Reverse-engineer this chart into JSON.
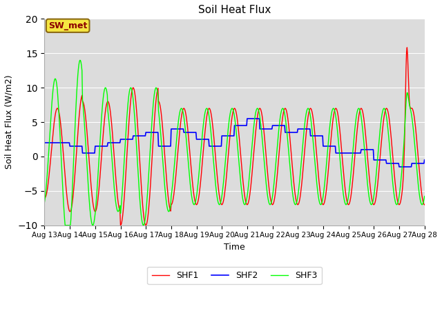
{
  "title": "Soil Heat Flux",
  "ylabel": "Soil Heat Flux (W/m2)",
  "xlabel": "Time",
  "ylim": [
    -10,
    20
  ],
  "annotation_text": "SW_met",
  "legend_labels": [
    "SHF1",
    "SHF2",
    "SHF3"
  ],
  "line_colors": [
    "red",
    "blue",
    "lime"
  ],
  "background_color": "#dcdcdc",
  "yticks": [
    -10,
    -5,
    0,
    5,
    10,
    15,
    20
  ],
  "xtick_labels": [
    "Aug 13",
    "Aug 14",
    "Aug 15",
    "Aug 16",
    "Aug 17",
    "Aug 18",
    "Aug 19",
    "Aug 20",
    "Aug 21",
    "Aug 22",
    "Aug 23",
    "Aug 24",
    "Aug 25",
    "Aug 26",
    "Aug 27",
    "Aug 28"
  ],
  "annotation_facecolor": "#f5e642",
  "annotation_edgecolor": "#8B6914",
  "annotation_textcolor": "#8B0000"
}
